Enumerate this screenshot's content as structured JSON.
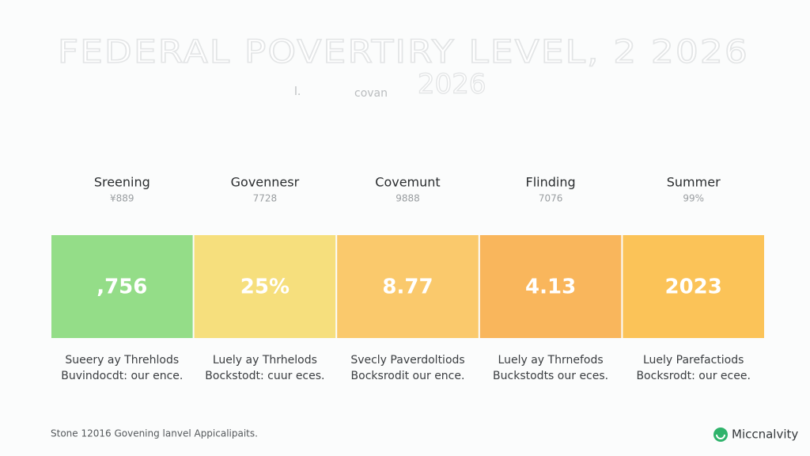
{
  "header": {
    "title": "FEDERAL POVERTIRY LEVEL, 2 2026",
    "subtitle_left": "l.",
    "subtitle_mid": "covan",
    "subtitle_year": "2026"
  },
  "columns": [
    {
      "name": "Sreening",
      "sub": "¥889",
      "value": ",756",
      "desc1": "Sueery ay Threhlods",
      "desc2": "Buvindocdt: our ence."
    },
    {
      "name": "Govennesr",
      "sub": "7728",
      "value": "25%",
      "desc1": "Luely ay Thrhelods",
      "desc2": "Bockstodt: cuur eces."
    },
    {
      "name": "Covemunt",
      "sub": "9888",
      "value": "8.77",
      "desc1": "Svecly Paverdoltiods",
      "desc2": "Bocksrodit our ence."
    },
    {
      "name": "Flinding",
      "sub": "7076",
      "value": "4.13",
      "desc1": "Luely ay Thrnefods",
      "desc2": "Buckstodts our eces."
    },
    {
      "name": "Summer",
      "sub": "99%",
      "value": "2023",
      "desc1": "Luely Parefactiods",
      "desc2": "Bocksrodt: our ecee."
    }
  ],
  "footer": {
    "note": "Stone 12016 Govening lanvel Appicalipaits.",
    "brand": "Miccnalvity"
  }
}
